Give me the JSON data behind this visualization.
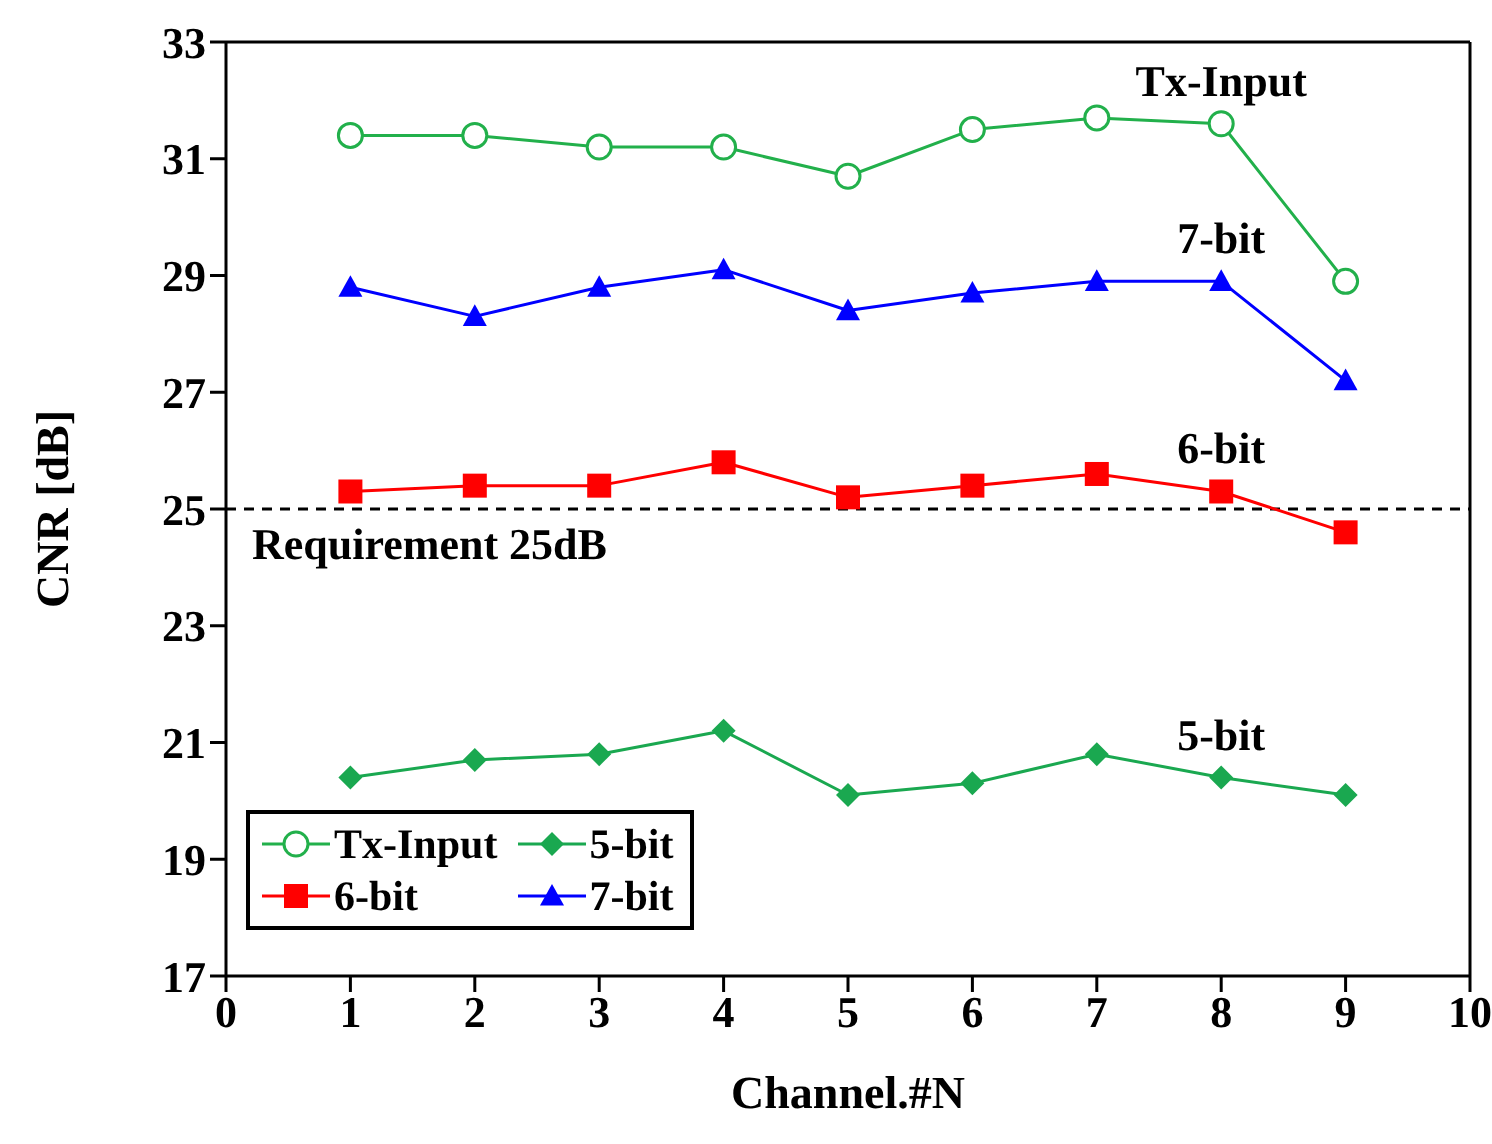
{
  "chart_data": {
    "type": "line",
    "xlabel": "Channel.#N",
    "ylabel": "CNR [dB]",
    "x": [
      1,
      2,
      3,
      4,
      5,
      6,
      7,
      8,
      9
    ],
    "series": [
      {
        "name": "Tx-Input",
        "color": "#22b04b",
        "marker": "circle",
        "values": [
          31.4,
          31.4,
          31.2,
          31.2,
          30.7,
          31.5,
          31.7,
          31.6,
          28.9
        ]
      },
      {
        "name": "5-bit",
        "color": "#1aa850",
        "marker": "diamond",
        "values": [
          20.4,
          20.7,
          20.8,
          21.2,
          20.1,
          20.3,
          20.8,
          20.4,
          20.1
        ]
      },
      {
        "name": "6-bit",
        "color": "#ff0000",
        "marker": "square",
        "values": [
          25.3,
          25.4,
          25.4,
          25.8,
          25.2,
          25.4,
          25.6,
          25.3,
          24.6
        ]
      },
      {
        "name": "7-bit",
        "color": "#0000ff",
        "marker": "triangle",
        "values": [
          28.8,
          28.3,
          28.8,
          29.1,
          28.4,
          28.7,
          28.9,
          28.9,
          27.2
        ]
      }
    ],
    "xlim": [
      0,
      10
    ],
    "xticks": [
      0,
      1,
      2,
      3,
      4,
      5,
      6,
      7,
      8,
      9,
      10
    ],
    "ylim": [
      17,
      33
    ],
    "yticks": [
      17,
      19,
      21,
      23,
      25,
      27,
      29,
      31,
      33
    ],
    "ref_lines": [
      {
        "axis": "y",
        "value": 25,
        "label": "Requirement 25dB",
        "color": "#000000",
        "line_style": "dashed"
      }
    ],
    "legend": "bottom left",
    "grid": false
  }
}
